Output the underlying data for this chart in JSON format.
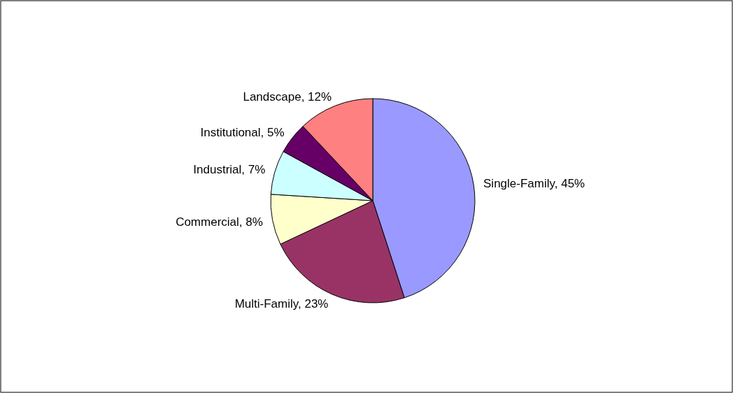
{
  "chart_data": {
    "type": "pie",
    "categories": [
      "Single-Family",
      "Multi-Family",
      "Commercial",
      "Industrial",
      "Institutional",
      "Landscape"
    ],
    "values": [
      45,
      23,
      8,
      7,
      5,
      12
    ],
    "colors": [
      "#9999ff",
      "#993366",
      "#ffffcc",
      "#ccffff",
      "#660066",
      "#ff8080"
    ],
    "value_labels": [
      "45%",
      "23%",
      "8%",
      "7%",
      "5%",
      "12%"
    ]
  }
}
